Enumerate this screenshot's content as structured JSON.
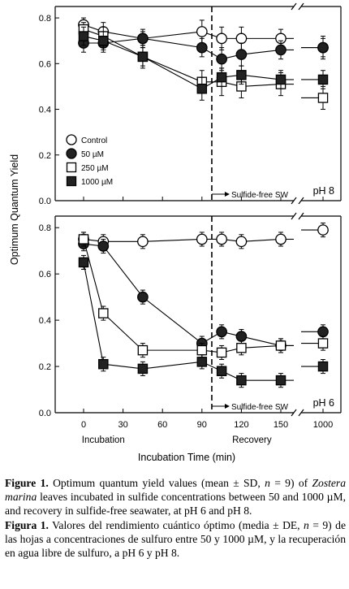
{
  "chart_data": {
    "type": "scatter",
    "ylabel": "Optimum Quantum Yield",
    "xlabel": "Incubation Time (min)",
    "x_ticks": [
      "0",
      "30",
      "60",
      "90",
      "120",
      "150",
      "1000"
    ],
    "x_group_labels": [
      "Incubation",
      "Recovery"
    ],
    "y_ticks": [
      "0.0",
      "0.2",
      "0.4",
      "0.6",
      "0.8"
    ],
    "ylim": [
      0,
      0.85
    ],
    "legend_placement": "lower-left of top panel",
    "recovery_annotation": "Sulfide-free SW",
    "panels": [
      {
        "label": "pH 8",
        "series": [
          {
            "name": "Control",
            "marker": "open-circle",
            "x": [
              0,
              15,
              45,
              90,
              105,
              120,
              150,
              1000
            ],
            "y": [
              0.77,
              0.74,
              0.71,
              0.74,
              0.71,
              0.71,
              0.71,
              0.67
            ],
            "err": [
              0.03,
              0.04,
              0.03,
              0.05,
              0.05,
              0.05,
              0.04,
              0.05
            ]
          },
          {
            "name": "50 µM",
            "marker": "filled-circle",
            "x": [
              0,
              15,
              45,
              90,
              105,
              120,
              150,
              1000
            ],
            "y": [
              0.69,
              0.69,
              0.71,
              0.67,
              0.62,
              0.64,
              0.66,
              0.67
            ],
            "err": [
              0.04,
              0.04,
              0.04,
              0.04,
              0.05,
              0.05,
              0.04,
              0.04
            ]
          },
          {
            "name": "250 µM",
            "marker": "open-square",
            "x": [
              0,
              15,
              45,
              90,
              105,
              120,
              150,
              1000
            ],
            "y": [
              0.75,
              0.72,
              0.63,
              0.52,
              0.52,
              0.5,
              0.51,
              0.45
            ],
            "err": [
              0.03,
              0.04,
              0.05,
              0.05,
              0.06,
              0.05,
              0.05,
              0.05
            ]
          },
          {
            "name": "1000 µM",
            "marker": "filled-square",
            "x": [
              0,
              15,
              45,
              90,
              105,
              120,
              150,
              1000
            ],
            "y": [
              0.72,
              0.7,
              0.63,
              0.49,
              0.54,
              0.55,
              0.53,
              0.53
            ],
            "err": [
              0.04,
              0.04,
              0.04,
              0.05,
              0.04,
              0.04,
              0.04,
              0.04
            ]
          }
        ]
      },
      {
        "label": "pH 6",
        "series": [
          {
            "name": "Control",
            "marker": "open-circle",
            "x": [
              0,
              15,
              45,
              90,
              105,
              120,
              150,
              1000
            ],
            "y": [
              0.75,
              0.74,
              0.74,
              0.75,
              0.75,
              0.74,
              0.75,
              0.79
            ],
            "err": [
              0.03,
              0.03,
              0.03,
              0.03,
              0.03,
              0.03,
              0.03,
              0.03
            ]
          },
          {
            "name": "50 µM",
            "marker": "filled-circle",
            "x": [
              0,
              15,
              45,
              90,
              105,
              120,
              150,
              1000
            ],
            "y": [
              0.73,
              0.72,
              0.5,
              0.3,
              0.35,
              0.33,
              0.29,
              0.35
            ],
            "err": [
              0.03,
              0.03,
              0.03,
              0.03,
              0.03,
              0.03,
              0.03,
              0.03
            ]
          },
          {
            "name": "250 µM",
            "marker": "open-square",
            "x": [
              0,
              15,
              45,
              90,
              105,
              120,
              150,
              1000
            ],
            "y": [
              0.75,
              0.43,
              0.27,
              0.27,
              0.26,
              0.28,
              0.29,
              0.3
            ],
            "err": [
              0.03,
              0.03,
              0.03,
              0.03,
              0.03,
              0.03,
              0.03,
              0.03
            ]
          },
          {
            "name": "1000 µM",
            "marker": "filled-square",
            "x": [
              0,
              15,
              45,
              90,
              105,
              120,
              150,
              1000
            ],
            "y": [
              0.65,
              0.21,
              0.19,
              0.22,
              0.18,
              0.14,
              0.14,
              0.2
            ],
            "err": [
              0.03,
              0.03,
              0.03,
              0.03,
              0.03,
              0.03,
              0.03,
              0.03
            ]
          }
        ]
      }
    ]
  },
  "caption": {
    "en_label": "Figure 1.",
    "en_p1": " Optimum quantum yield values (mean ± SD, ",
    "en_n": "n",
    "en_p2": " = 9) of ",
    "en_species": "Zostera marina",
    "en_p3": " leaves incubated in sulfide concentrations between 50 and 1000 µM, and recovery in sulfide-free seawater, at pH 6 and pH 8.",
    "es_label": "Figura 1.",
    "es_p1": " Valores del rendimiento cuántico óptimo (media ± DE, ",
    "es_n": "n",
    "es_p2": " = 9) de las hojas a concentraciones de sulfuro entre 50 y 1000 µM, y la recuperación en agua libre de sulfuro, a pH 6 y pH 8."
  }
}
